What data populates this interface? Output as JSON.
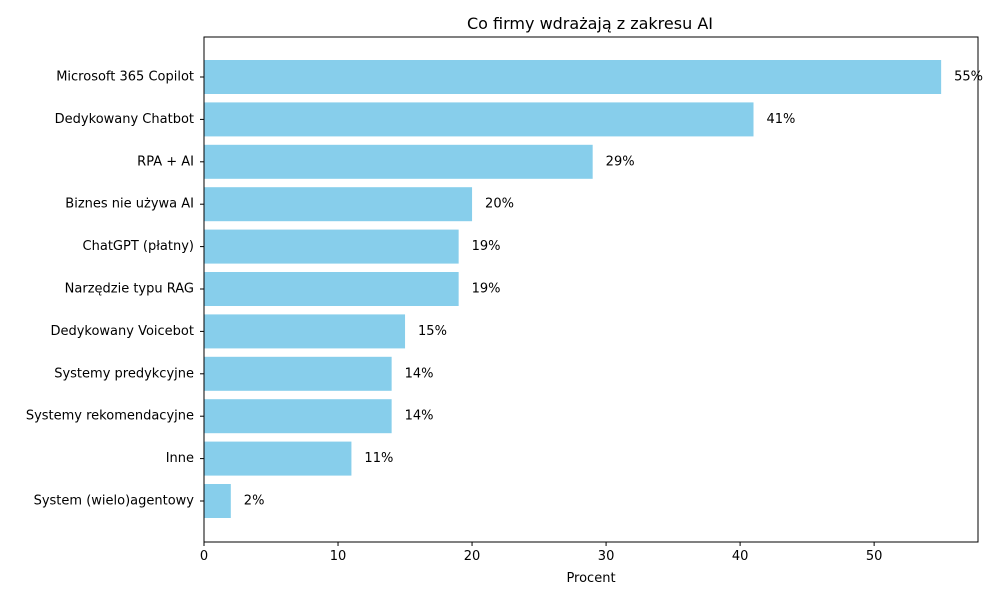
{
  "chart_data": {
    "type": "bar",
    "orientation": "horizontal",
    "title": "Co firmy wdrażają z zakresu AI",
    "xlabel": "Procent",
    "ylabel": "",
    "xlim": [
      0,
      57.75
    ],
    "xticks": [
      0,
      10,
      20,
      30,
      40,
      50
    ],
    "grid": false,
    "bar_color": "#87CEEB",
    "categories": [
      "Microsoft 365 Copilot",
      "Dedykowany Chatbot",
      "RPA + AI",
      "Biznes nie używa AI",
      "ChatGPT (płatny)",
      "Narzędzie typu RAG",
      "Dedykowany Voicebot",
      "Systemy predykcyjne",
      "Systemy rekomendacyjne",
      "Inne",
      "System (wielo)agentowy"
    ],
    "values": [
      55,
      41,
      29,
      20,
      19,
      19,
      15,
      14,
      14,
      11,
      2
    ],
    "value_labels": [
      "55%",
      "41%",
      "29%",
      "20%",
      "19%",
      "19%",
      "15%",
      "14%",
      "14%",
      "11%",
      "2%"
    ]
  }
}
